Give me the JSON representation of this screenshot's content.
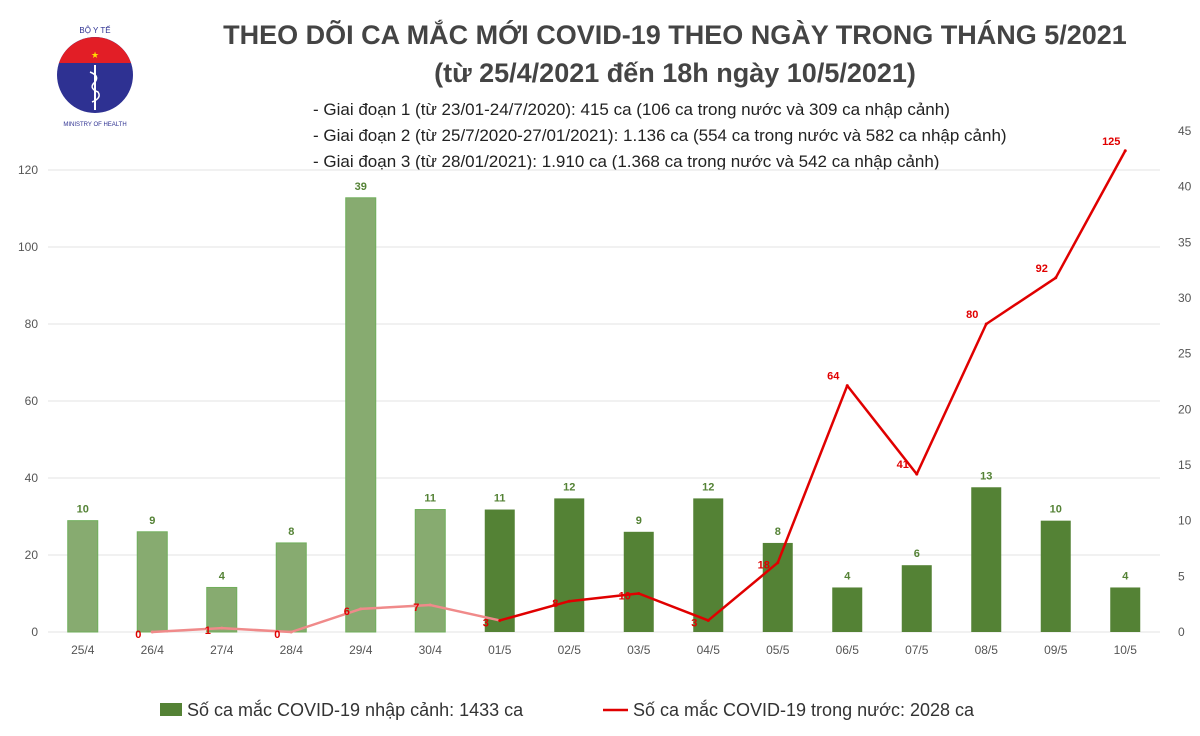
{
  "title": "THEO DÕI CA MẮC MỚI COVID-19 THEO NGÀY TRONG THÁNG 5/2021",
  "subtitle": "(từ 25/4/2021 đến 18h ngày 10/5/2021)",
  "notes": [
    "- Giai đoạn 1 (từ 23/01-24/7/2020): 415 ca (106 ca trong nước và 309 ca nhập cảnh)",
    "- Giai đoạn 2 (từ 25/7/2020-27/01/2021): 1.136 ca (554 ca trong nước và 582 ca nhập cảnh)",
    "- Giai đoạn 3 (từ 28/01/2021): 1.910 ca (1.368 ca trong nước và 542 ca nhập cảnh)"
  ],
  "logo": {
    "top_text": "BỘ Y TẾ",
    "bottom_text": "MINISTRY OF HEALTH"
  },
  "chart_data": {
    "type": "bar+line",
    "categories": [
      "25/4",
      "26/4",
      "27/4",
      "28/4",
      "29/4",
      "30/4",
      "01/5",
      "02/5",
      "03/5",
      "04/5",
      "05/5",
      "06/5",
      "07/5",
      "08/5",
      "09/5",
      "10/5"
    ],
    "series": [
      {
        "name": "Số ca mắc COVID-19 nhập cảnh: 1433 ca",
        "type": "bar",
        "axis": "right",
        "color": "#548235",
        "faded_color": "#87ab70",
        "values": [
          10,
          9,
          4,
          8,
          39,
          11,
          11,
          12,
          9,
          12,
          8,
          4,
          6,
          13,
          10,
          4
        ]
      },
      {
        "name": "Số ca mắc COVID-19 trong nước: 2028 ca",
        "type": "line",
        "axis": "left",
        "color": "#e00000",
        "faded_color": "#f08a8a",
        "values": [
          null,
          0,
          1,
          0,
          6,
          7,
          3,
          8,
          10,
          3,
          18,
          64,
          41,
          80,
          92,
          125
        ]
      }
    ],
    "left_axis": {
      "range": [
        0,
        120
      ],
      "ticks": [
        0,
        20,
        40,
        60,
        80,
        100,
        120
      ]
    },
    "right_axis": {
      "range": [
        0,
        45
      ],
      "ticks": [
        0,
        5,
        10,
        15,
        20,
        25,
        30,
        35,
        40,
        45
      ]
    },
    "grid": true,
    "legend": "bottom"
  }
}
